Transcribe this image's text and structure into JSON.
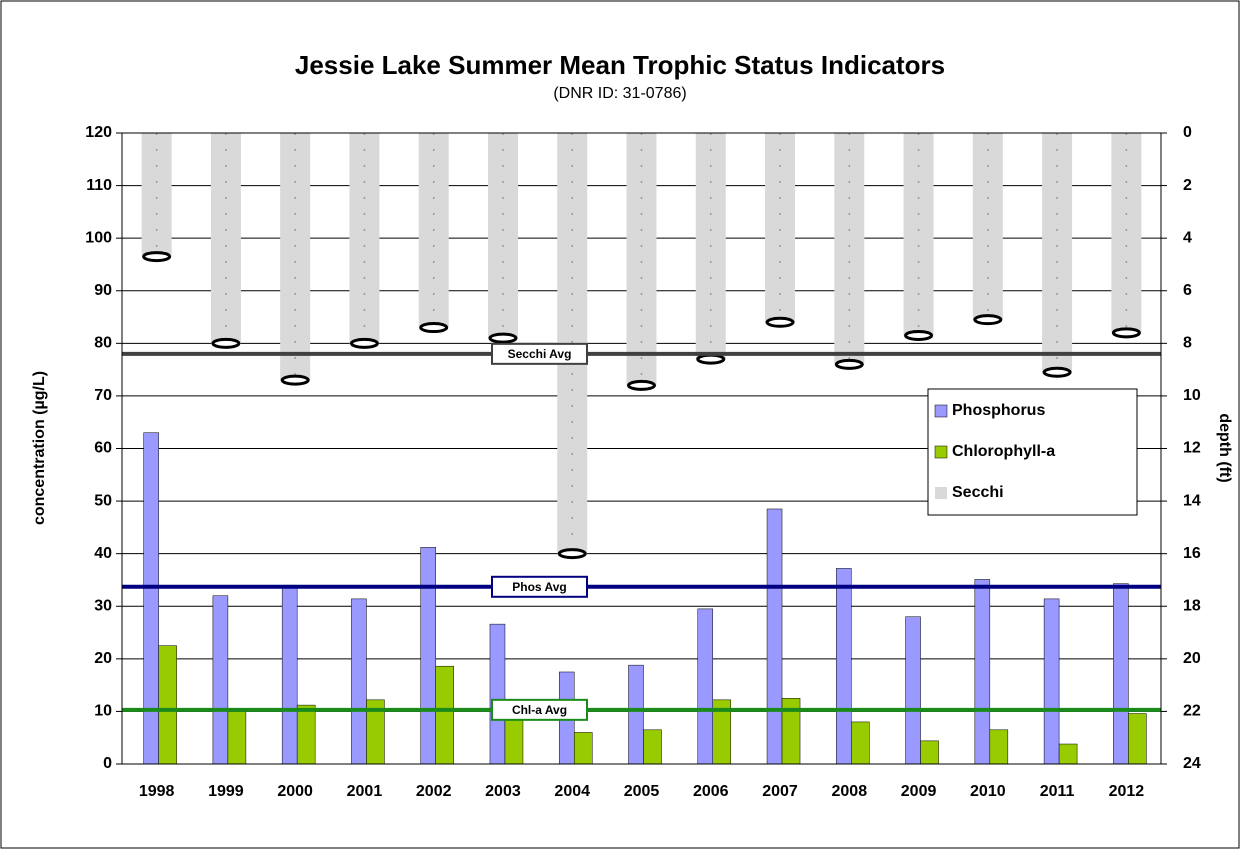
{
  "chart_data": {
    "type": "bar",
    "title": "Jessie Lake Summer Mean Trophic Status Indicators",
    "subtitle": "(DNR ID: 31-0786)",
    "y_label": "concentration (µg/L)",
    "y2_label": "depth (ft)",
    "categories": [
      "1998",
      "1999",
      "2000",
      "2001",
      "2002",
      "2003",
      "2004",
      "2005",
      "2006",
      "2007",
      "2008",
      "2009",
      "2010",
      "2011",
      "2012"
    ],
    "series": [
      {
        "name": "Phosphorus",
        "color": "#9999ff",
        "values": [
          63,
          32,
          34,
          31.4,
          41.2,
          26.6,
          17.5,
          18.8,
          29.5,
          48.5,
          37.2,
          28,
          35.1,
          31.4,
          34.3
        ]
      },
      {
        "name": "Chlorophyll-a",
        "color": "#99cc00",
        "values": [
          22.5,
          10,
          11.2,
          12.2,
          18.6,
          9.5,
          6,
          6.5,
          12.2,
          12.5,
          8,
          4.4,
          6.5,
          3.8,
          9.6
        ]
      },
      {
        "name": "Secchi",
        "color": "#d9d9d9",
        "axis": "y2",
        "values": [
          4.7,
          8,
          9.4,
          8,
          7.4,
          7.8,
          16,
          9.6,
          8.6,
          7.2,
          8.8,
          7.7,
          7.1,
          9.1,
          7.6
        ]
      }
    ],
    "reference_lines": [
      {
        "label": "Secchi Avg",
        "value": 8.4,
        "axis": "y2",
        "color": "#404040"
      },
      {
        "label": "Phos Avg",
        "value": 33.7,
        "axis": "y",
        "color": "#000080"
      },
      {
        "label": "Chl-a Avg",
        "value": 10.3,
        "axis": "y",
        "color": "#1a8a1a"
      }
    ],
    "ylim": [
      0,
      120
    ],
    "yticks": [
      0,
      10,
      20,
      30,
      40,
      50,
      60,
      70,
      80,
      90,
      100,
      110,
      120
    ],
    "y2lim": [
      24,
      0
    ],
    "y2ticks": [
      0,
      2,
      4,
      6,
      8,
      10,
      12,
      14,
      16,
      18,
      20,
      22,
      24
    ],
    "grid": true,
    "legend": "right"
  }
}
